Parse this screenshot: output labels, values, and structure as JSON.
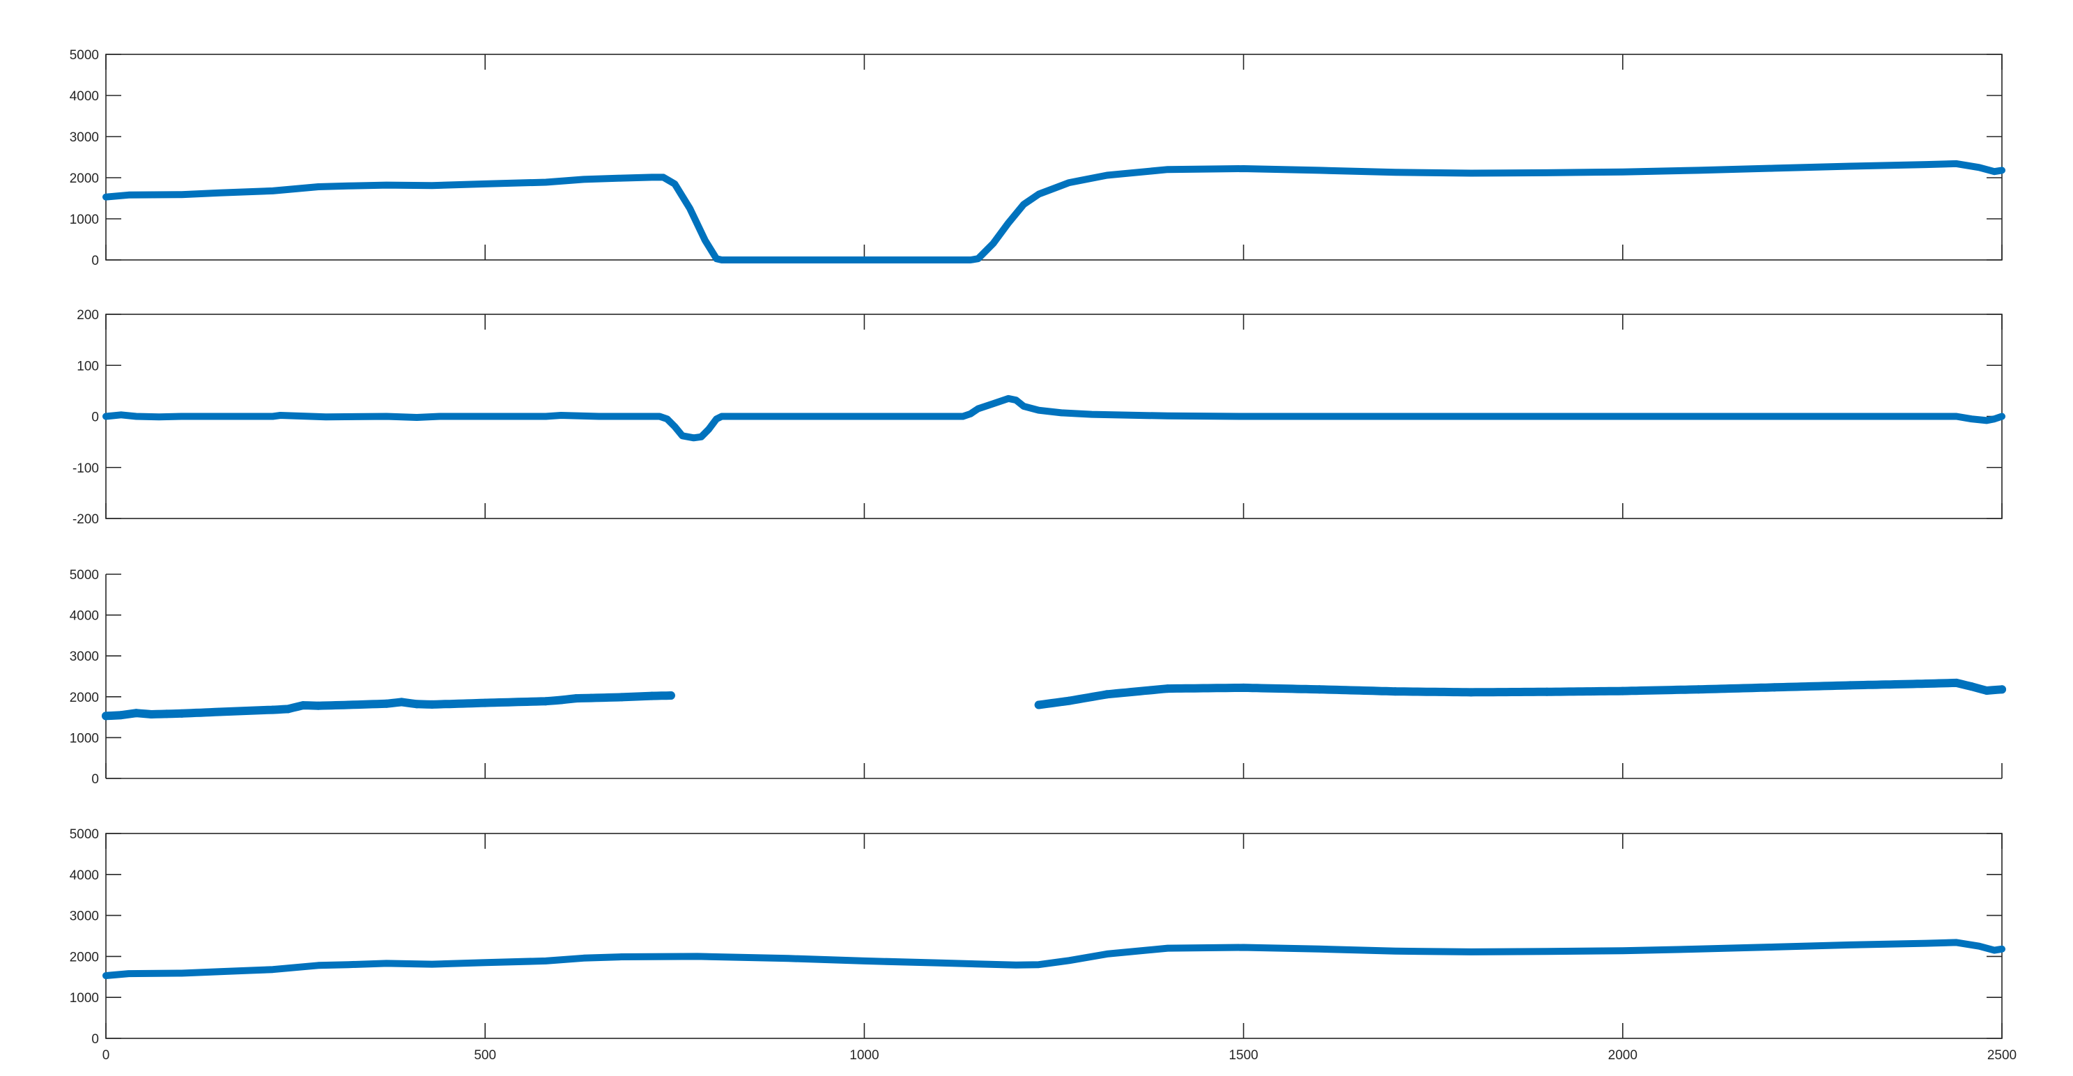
{
  "figure": {
    "background": "#ffffff",
    "axis_color": "#262626",
    "series_color": "#0072bd"
  },
  "chart_data": [
    {
      "type": "line",
      "title": "",
      "xlabel": "",
      "ylabel": "",
      "xlim": [
        0,
        2500
      ],
      "ylim": [
        0,
        5000
      ],
      "yticks": [
        0,
        1000,
        2000,
        3000,
        4000,
        5000
      ],
      "ytick_labels": [
        "0",
        "1000",
        "2000",
        "3000",
        "4000",
        "5000"
      ],
      "xticks": [
        0,
        500,
        1000,
        1500,
        2000,
        2500
      ],
      "xtick_labels": [],
      "grid": false,
      "box": true,
      "series": [
        {
          "style": "line",
          "segments": [
            [
              [
                0,
                1530
              ],
              [
                30,
                1580
              ],
              [
                100,
                1590
              ],
              [
                150,
                1630
              ],
              [
                220,
                1680
              ],
              [
                280,
                1780
              ],
              [
                320,
                1800
              ],
              [
                370,
                1820
              ],
              [
                430,
                1810
              ],
              [
                500,
                1850
              ],
              [
                580,
                1890
              ],
              [
                630,
                1960
              ],
              [
                680,
                1990
              ],
              [
                720,
                2010
              ],
              [
                735,
                2010
              ],
              [
                750,
                1850
              ],
              [
                770,
                1250
              ],
              [
                790,
                480
              ],
              [
                805,
                30
              ],
              [
                812,
                0
              ],
              [
                1140,
                0
              ],
              [
                1150,
                30
              ],
              [
                1170,
                400
              ],
              [
                1190,
                900
              ],
              [
                1210,
                1350
              ],
              [
                1230,
                1600
              ],
              [
                1270,
                1880
              ],
              [
                1320,
                2060
              ],
              [
                1400,
                2200
              ],
              [
                1500,
                2220
              ],
              [
                1600,
                2180
              ],
              [
                1700,
                2130
              ],
              [
                1800,
                2110
              ],
              [
                1900,
                2120
              ],
              [
                2000,
                2140
              ],
              [
                2100,
                2180
              ],
              [
                2200,
                2230
              ],
              [
                2300,
                2280
              ],
              [
                2400,
                2320
              ],
              [
                2440,
                2340
              ],
              [
                2470,
                2250
              ],
              [
                2490,
                2150
              ],
              [
                2500,
                2180
              ]
            ]
          ]
        }
      ]
    },
    {
      "type": "line",
      "title": "",
      "xlabel": "",
      "ylabel": "",
      "xlim": [
        0,
        2500
      ],
      "ylim": [
        -200,
        200
      ],
      "yticks": [
        -200,
        -100,
        0,
        100,
        200
      ],
      "ytick_labels": [
        "-200",
        "-100",
        "0",
        "100",
        "200"
      ],
      "xticks": [
        0,
        500,
        1000,
        1500,
        2000,
        2500
      ],
      "xtick_labels": [],
      "grid": false,
      "box": true,
      "series": [
        {
          "style": "line",
          "segments": [
            [
              [
                0,
                0
              ],
              [
                20,
                3
              ],
              [
                40,
                0
              ],
              [
                70,
                -1
              ],
              [
                100,
                0
              ],
              [
                220,
                0
              ],
              [
                230,
                2
              ],
              [
                270,
                0
              ],
              [
                290,
                -1
              ],
              [
                370,
                0
              ],
              [
                410,
                -2
              ],
              [
                440,
                0
              ],
              [
                580,
                0
              ],
              [
                600,
                2
              ],
              [
                650,
                0
              ],
              [
                730,
                0
              ],
              [
                740,
                -5
              ],
              [
                750,
                -20
              ],
              [
                760,
                -38
              ],
              [
                775,
                -42
              ],
              [
                785,
                -40
              ],
              [
                795,
                -25
              ],
              [
                805,
                -5
              ],
              [
                812,
                0
              ],
              [
                1130,
                0
              ],
              [
                1140,
                5
              ],
              [
                1150,
                15
              ],
              [
                1170,
                25
              ],
              [
                1190,
                35
              ],
              [
                1200,
                32
              ],
              [
                1210,
                20
              ],
              [
                1230,
                12
              ],
              [
                1260,
                7
              ],
              [
                1300,
                4
              ],
              [
                1400,
                1
              ],
              [
                1500,
                0
              ],
              [
                2400,
                0
              ],
              [
                2440,
                0
              ],
              [
                2460,
                -5
              ],
              [
                2480,
                -8
              ],
              [
                2490,
                -5
              ],
              [
                2500,
                0
              ]
            ]
          ]
        }
      ]
    },
    {
      "type": "line",
      "title": "",
      "xlabel": "",
      "ylabel": "",
      "xlim": [
        0,
        2500
      ],
      "ylim": [
        0,
        5000
      ],
      "yticks": [
        0,
        1000,
        2000,
        3000,
        4000,
        5000
      ],
      "ytick_labels": [
        "0",
        "1000",
        "2000",
        "3000",
        "4000",
        "5000"
      ],
      "xticks": [
        0,
        500,
        1000,
        1500,
        2000,
        2500
      ],
      "xtick_labels": [],
      "grid": false,
      "box": false,
      "series": [
        {
          "style": "markers",
          "segments": [
            [
              [
                0,
                1530
              ],
              [
                20,
                1550
              ],
              [
                40,
                1600
              ],
              [
                60,
                1570
              ],
              [
                80,
                1580
              ],
              [
                100,
                1590
              ],
              [
                150,
                1630
              ],
              [
                220,
                1680
              ],
              [
                240,
                1700
              ],
              [
                260,
                1790
              ],
              [
                280,
                1780
              ],
              [
                320,
                1800
              ],
              [
                370,
                1830
              ],
              [
                390,
                1870
              ],
              [
                410,
                1820
              ],
              [
                430,
                1810
              ],
              [
                500,
                1850
              ],
              [
                580,
                1890
              ],
              [
                600,
                1920
              ],
              [
                620,
                1960
              ],
              [
                640,
                1970
              ],
              [
                680,
                1990
              ],
              [
                720,
                2020
              ],
              [
                745,
                2030
              ]
            ],
            [
              [
                1230,
                1800
              ],
              [
                1270,
                1900
              ],
              [
                1320,
                2060
              ],
              [
                1400,
                2200
              ],
              [
                1500,
                2220
              ],
              [
                1600,
                2180
              ],
              [
                1700,
                2130
              ],
              [
                1800,
                2110
              ],
              [
                1900,
                2120
              ],
              [
                2000,
                2140
              ],
              [
                2100,
                2180
              ],
              [
                2200,
                2230
              ],
              [
                2300,
                2280
              ],
              [
                2400,
                2320
              ],
              [
                2440,
                2340
              ],
              [
                2460,
                2250
              ],
              [
                2480,
                2150
              ],
              [
                2500,
                2180
              ]
            ]
          ]
        }
      ]
    },
    {
      "type": "line",
      "title": "",
      "xlabel": "",
      "ylabel": "",
      "xlim": [
        0,
        2500
      ],
      "ylim": [
        0,
        5000
      ],
      "yticks": [
        0,
        1000,
        2000,
        3000,
        4000,
        5000
      ],
      "ytick_labels": [
        "0",
        "1000",
        "2000",
        "3000",
        "4000",
        "5000"
      ],
      "xticks": [
        0,
        500,
        1000,
        1500,
        2000,
        2500
      ],
      "xtick_labels": [
        "0",
        "500",
        "1000",
        "1500",
        "2000",
        "2500"
      ],
      "grid": false,
      "box": true,
      "series": [
        {
          "style": "line",
          "segments": [
            [
              [
                0,
                1530
              ],
              [
                30,
                1580
              ],
              [
                100,
                1590
              ],
              [
                150,
                1630
              ],
              [
                220,
                1680
              ],
              [
                280,
                1780
              ],
              [
                320,
                1800
              ],
              [
                370,
                1830
              ],
              [
                430,
                1810
              ],
              [
                500,
                1850
              ],
              [
                580,
                1890
              ],
              [
                630,
                1960
              ],
              [
                680,
                1990
              ],
              [
                780,
                2000
              ],
              [
                900,
                1950
              ],
              [
                1000,
                1890
              ],
              [
                1100,
                1840
              ],
              [
                1200,
                1790
              ],
              [
                1230,
                1800
              ],
              [
                1270,
                1900
              ],
              [
                1320,
                2060
              ],
              [
                1400,
                2200
              ],
              [
                1500,
                2220
              ],
              [
                1600,
                2180
              ],
              [
                1700,
                2130
              ],
              [
                1800,
                2110
              ],
              [
                1900,
                2120
              ],
              [
                2000,
                2140
              ],
              [
                2100,
                2180
              ],
              [
                2200,
                2230
              ],
              [
                2300,
                2280
              ],
              [
                2400,
                2320
              ],
              [
                2440,
                2340
              ],
              [
                2470,
                2250
              ],
              [
                2490,
                2150
              ],
              [
                2500,
                2180
              ]
            ]
          ]
        }
      ]
    }
  ]
}
